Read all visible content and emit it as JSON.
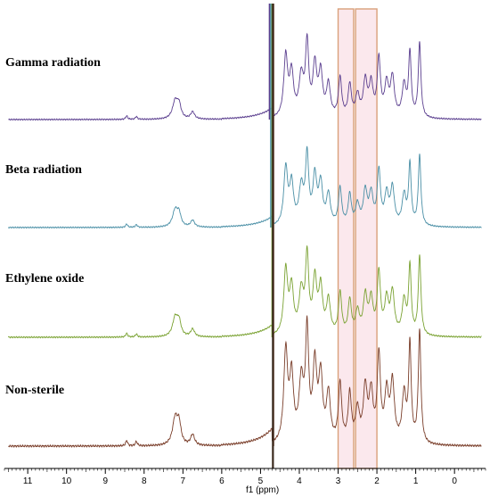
{
  "chart_data": {
    "type": "line",
    "title": "",
    "xlabel": "f1 (ppm)",
    "ylabel": "",
    "x_reversed": true,
    "xlim": [
      -0.8,
      11.6
    ],
    "x_ticks": [
      11,
      10,
      9,
      8,
      7,
      6,
      5,
      4,
      3,
      2,
      1,
      0
    ],
    "grid": false,
    "highlight_regions": [
      {
        "from": 2.6,
        "to": 3.0,
        "color": "#d9a07a"
      },
      {
        "from": 2.0,
        "to": 2.55,
        "color": "#d9a07a"
      }
    ],
    "solvent_peak_ppm": 4.7,
    "series": [
      {
        "name": "Gamma radiation",
        "color": "#5b3f8f"
      },
      {
        "name": "Beta radiation",
        "color": "#4a8fa6"
      },
      {
        "name": "Ethylene oxide",
        "color": "#7aa232"
      },
      {
        "name": "Non-sterile",
        "color": "#7a3e2a"
      }
    ],
    "peaks_ppm": [
      {
        "ppm": 8.45,
        "h": 0.05,
        "w": 0.03
      },
      {
        "ppm": 8.2,
        "h": 0.04,
        "w": 0.03
      },
      {
        "ppm": 7.2,
        "h": 0.25,
        "w": 0.08
      },
      {
        "ppm": 7.1,
        "h": 0.18,
        "w": 0.06
      },
      {
        "ppm": 6.75,
        "h": 0.1,
        "w": 0.06
      },
      {
        "ppm": 4.35,
        "h": 0.85,
        "w": 0.06
      },
      {
        "ppm": 4.2,
        "h": 0.6,
        "w": 0.06
      },
      {
        "ppm": 3.95,
        "h": 0.55,
        "w": 0.07
      },
      {
        "ppm": 3.8,
        "h": 1.0,
        "w": 0.05
      },
      {
        "ppm": 3.6,
        "h": 0.7,
        "w": 0.06
      },
      {
        "ppm": 3.45,
        "h": 0.6,
        "w": 0.06
      },
      {
        "ppm": 3.25,
        "h": 0.45,
        "w": 0.06
      },
      {
        "ppm": 2.95,
        "h": 0.55,
        "w": 0.05
      },
      {
        "ppm": 2.7,
        "h": 0.45,
        "w": 0.05
      },
      {
        "ppm": 2.5,
        "h": 0.3,
        "w": 0.06
      },
      {
        "ppm": 2.3,
        "h": 0.5,
        "w": 0.06
      },
      {
        "ppm": 2.15,
        "h": 0.45,
        "w": 0.06
      },
      {
        "ppm": 1.95,
        "h": 0.8,
        "w": 0.05
      },
      {
        "ppm": 1.75,
        "h": 0.45,
        "w": 0.06
      },
      {
        "ppm": 1.6,
        "h": 0.55,
        "w": 0.06
      },
      {
        "ppm": 1.3,
        "h": 0.45,
        "w": 0.06
      },
      {
        "ppm": 1.15,
        "h": 0.9,
        "w": 0.04
      },
      {
        "ppm": 0.9,
        "h": 1.05,
        "w": 0.04
      }
    ]
  }
}
